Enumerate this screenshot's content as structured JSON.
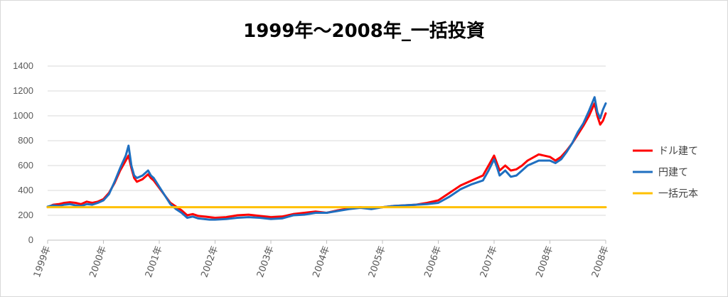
{
  "chart_data": {
    "type": "line",
    "title": "1999年～2008年_一括投資",
    "xlabel": "",
    "ylabel": "",
    "ylim": [
      0,
      1400
    ],
    "yticks": [
      0,
      200,
      400,
      600,
      800,
      1000,
      1200,
      1400
    ],
    "xlim": [
      1999.0,
      2009.0
    ],
    "x_tick_labels": [
      "1999年",
      "2000年",
      "2001年",
      "2002年",
      "2003年",
      "2004年",
      "2005年",
      "2006年",
      "2007年",
      "2008年",
      "2008年"
    ],
    "grid": true,
    "legend_position": "right",
    "series": [
      {
        "name": "ドル建て",
        "color": "#ff0000",
        "points": [
          [
            1999.0,
            265
          ],
          [
            1999.1,
            285
          ],
          [
            1999.2,
            290
          ],
          [
            1999.3,
            300
          ],
          [
            1999.4,
            305
          ],
          [
            1999.5,
            300
          ],
          [
            1999.6,
            290
          ],
          [
            1999.7,
            310
          ],
          [
            1999.8,
            300
          ],
          [
            1999.9,
            310
          ],
          [
            2000.0,
            330
          ],
          [
            2000.1,
            380
          ],
          [
            2000.2,
            460
          ],
          [
            2000.3,
            560
          ],
          [
            2000.4,
            640
          ],
          [
            2000.45,
            680
          ],
          [
            2000.5,
            580
          ],
          [
            2000.55,
            500
          ],
          [
            2000.6,
            470
          ],
          [
            2000.7,
            490
          ],
          [
            2000.8,
            530
          ],
          [
            2000.85,
            500
          ],
          [
            2000.9,
            480
          ],
          [
            2001.0,
            420
          ],
          [
            2001.1,
            360
          ],
          [
            2001.2,
            300
          ],
          [
            2001.3,
            270
          ],
          [
            2001.4,
            240
          ],
          [
            2001.5,
            200
          ],
          [
            2001.6,
            210
          ],
          [
            2001.7,
            195
          ],
          [
            2001.8,
            190
          ],
          [
            2001.9,
            185
          ],
          [
            2002.0,
            180
          ],
          [
            2002.2,
            185
          ],
          [
            2002.4,
            200
          ],
          [
            2002.6,
            205
          ],
          [
            2002.8,
            195
          ],
          [
            2003.0,
            185
          ],
          [
            2003.2,
            190
          ],
          [
            2003.4,
            210
          ],
          [
            2003.6,
            220
          ],
          [
            2003.8,
            230
          ],
          [
            2004.0,
            220
          ],
          [
            2004.2,
            240
          ],
          [
            2004.4,
            255
          ],
          [
            2004.6,
            265
          ],
          [
            2004.8,
            255
          ],
          [
            2005.0,
            265
          ],
          [
            2005.2,
            275
          ],
          [
            2005.4,
            280
          ],
          [
            2005.6,
            285
          ],
          [
            2005.8,
            300
          ],
          [
            2006.0,
            320
          ],
          [
            2006.2,
            380
          ],
          [
            2006.4,
            440
          ],
          [
            2006.6,
            480
          ],
          [
            2006.8,
            520
          ],
          [
            2006.9,
            600
          ],
          [
            2007.0,
            680
          ],
          [
            2007.05,
            620
          ],
          [
            2007.1,
            560
          ],
          [
            2007.2,
            600
          ],
          [
            2007.3,
            560
          ],
          [
            2007.4,
            570
          ],
          [
            2007.5,
            600
          ],
          [
            2007.6,
            640
          ],
          [
            2007.8,
            690
          ],
          [
            2008.0,
            670
          ],
          [
            2008.1,
            640
          ],
          [
            2008.2,
            670
          ],
          [
            2008.3,
            720
          ],
          [
            2008.4,
            780
          ],
          [
            2008.5,
            850
          ],
          [
            2008.6,
            920
          ],
          [
            2008.7,
            1000
          ],
          [
            2008.8,
            1100
          ],
          [
            2008.85,
            1000
          ],
          [
            2008.9,
            930
          ],
          [
            2008.95,
            960
          ],
          [
            2009.0,
            1020
          ]
        ]
      },
      {
        "name": "円建て",
        "color": "#1f6fc0",
        "points": [
          [
            1999.0,
            270
          ],
          [
            1999.1,
            280
          ],
          [
            1999.2,
            275
          ],
          [
            1999.3,
            285
          ],
          [
            1999.4,
            290
          ],
          [
            1999.5,
            280
          ],
          [
            1999.6,
            275
          ],
          [
            1999.7,
            290
          ],
          [
            1999.8,
            285
          ],
          [
            1999.9,
            300
          ],
          [
            2000.0,
            320
          ],
          [
            2000.1,
            370
          ],
          [
            2000.2,
            470
          ],
          [
            2000.3,
            580
          ],
          [
            2000.4,
            680
          ],
          [
            2000.45,
            760
          ],
          [
            2000.5,
            600
          ],
          [
            2000.55,
            520
          ],
          [
            2000.6,
            500
          ],
          [
            2000.7,
            520
          ],
          [
            2000.8,
            560
          ],
          [
            2000.85,
            520
          ],
          [
            2000.9,
            500
          ],
          [
            2001.0,
            430
          ],
          [
            2001.1,
            360
          ],
          [
            2001.2,
            290
          ],
          [
            2001.3,
            250
          ],
          [
            2001.4,
            220
          ],
          [
            2001.5,
            180
          ],
          [
            2001.6,
            190
          ],
          [
            2001.7,
            175
          ],
          [
            2001.8,
            170
          ],
          [
            2001.9,
            165
          ],
          [
            2002.0,
            165
          ],
          [
            2002.2,
            170
          ],
          [
            2002.4,
            180
          ],
          [
            2002.6,
            185
          ],
          [
            2002.8,
            180
          ],
          [
            2003.0,
            170
          ],
          [
            2003.2,
            175
          ],
          [
            2003.4,
            200
          ],
          [
            2003.6,
            205
          ],
          [
            2003.8,
            220
          ],
          [
            2004.0,
            220
          ],
          [
            2004.2,
            235
          ],
          [
            2004.4,
            250
          ],
          [
            2004.6,
            260
          ],
          [
            2004.8,
            250
          ],
          [
            2005.0,
            265
          ],
          [
            2005.2,
            275
          ],
          [
            2005.4,
            280
          ],
          [
            2005.6,
            285
          ],
          [
            2005.8,
            290
          ],
          [
            2006.0,
            300
          ],
          [
            2006.2,
            350
          ],
          [
            2006.4,
            410
          ],
          [
            2006.6,
            450
          ],
          [
            2006.8,
            480
          ],
          [
            2006.9,
            560
          ],
          [
            2007.0,
            650
          ],
          [
            2007.05,
            590
          ],
          [
            2007.1,
            520
          ],
          [
            2007.2,
            560
          ],
          [
            2007.3,
            510
          ],
          [
            2007.4,
            520
          ],
          [
            2007.5,
            560
          ],
          [
            2007.6,
            600
          ],
          [
            2007.8,
            640
          ],
          [
            2008.0,
            640
          ],
          [
            2008.1,
            620
          ],
          [
            2008.2,
            650
          ],
          [
            2008.3,
            710
          ],
          [
            2008.4,
            780
          ],
          [
            2008.5,
            870
          ],
          [
            2008.6,
            940
          ],
          [
            2008.7,
            1040
          ],
          [
            2008.8,
            1150
          ],
          [
            2008.85,
            1030
          ],
          [
            2008.9,
            980
          ],
          [
            2008.95,
            1050
          ],
          [
            2009.0,
            1100
          ]
        ]
      },
      {
        "name": "一括元本",
        "color": "#ffc000",
        "points": [
          [
            1999.0,
            265
          ],
          [
            2009.0,
            265
          ]
        ]
      }
    ]
  }
}
